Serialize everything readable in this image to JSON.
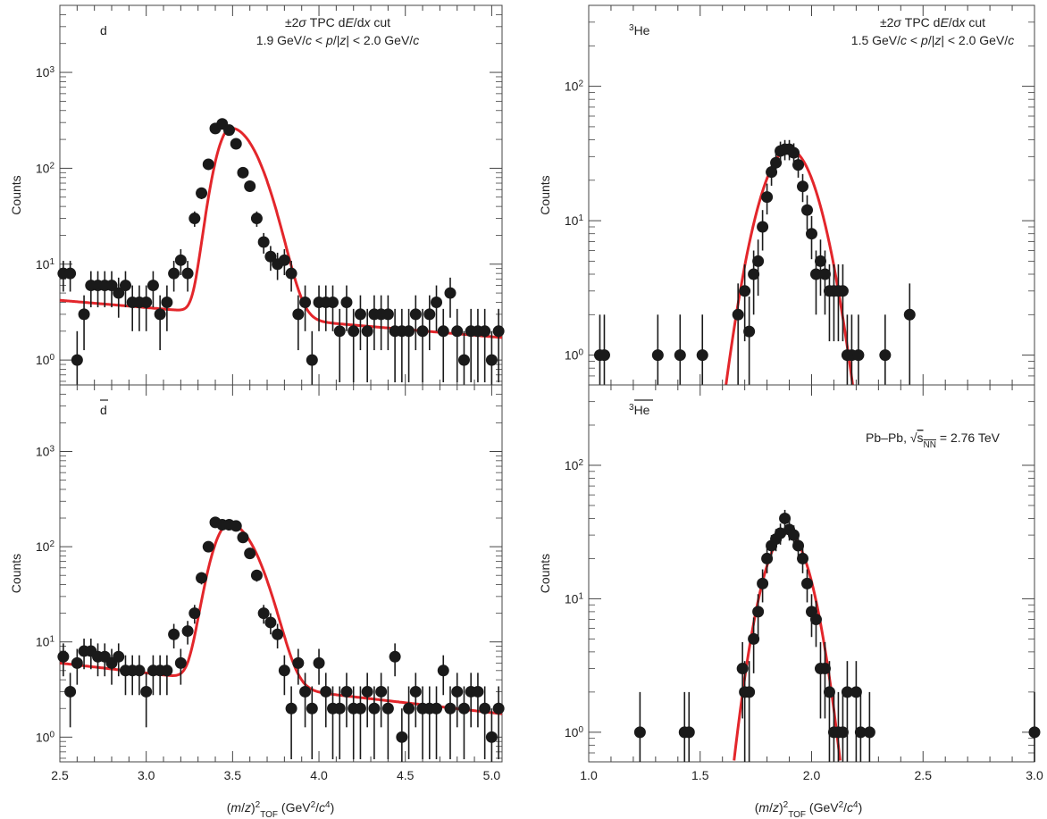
{
  "chart_data": [
    {
      "type": "scatter",
      "panel_label": "d",
      "annotation_lines": [
        "±2σ TPC dE/dx cut",
        "1.9 GeV/c < p/|z| < 2.0 GeV/c"
      ],
      "ylabel": "Counts",
      "y_scale": "log",
      "ylim": [
        0.55,
        5000
      ],
      "xlim": [
        2.5,
        5.06
      ],
      "xticks": [],
      "yticks": [
        {
          "v": 1,
          "label": "10⁰"
        },
        {
          "v": 10,
          "label": "10¹"
        },
        {
          "v": 100,
          "label": "10²"
        },
        {
          "v": 1000,
          "label": "10³"
        }
      ],
      "fit": {
        "type": "gauss+background",
        "amp": 260,
        "mu": 3.49,
        "sigma_left": 0.07,
        "sigma_right": 0.13,
        "bg_a": 4.2,
        "bg_slope": -0.35,
        "bg_x0": 2.5
      },
      "x": [
        2.52,
        2.56,
        2.6,
        2.64,
        2.68,
        2.72,
        2.76,
        2.8,
        2.84,
        2.88,
        2.92,
        2.96,
        3.0,
        3.04,
        3.08,
        3.12,
        3.16,
        3.2,
        3.24,
        3.28,
        3.32,
        3.36,
        3.4,
        3.44,
        3.48,
        3.52,
        3.56,
        3.6,
        3.64,
        3.68,
        3.72,
        3.76,
        3.8,
        3.84,
        3.88,
        3.92,
        3.96,
        4.0,
        4.04,
        4.08,
        4.12,
        4.16,
        4.2,
        4.24,
        4.28,
        4.32,
        4.36,
        4.4,
        4.44,
        4.48,
        4.52,
        4.56,
        4.6,
        4.64,
        4.68,
        4.72,
        4.76,
        4.8,
        4.84,
        4.88,
        4.92,
        4.96,
        5.0,
        5.04
      ],
      "y": [
        8,
        8,
        1,
        3,
        6,
        6,
        6,
        6,
        5,
        6,
        4,
        4,
        4,
        6,
        3,
        4,
        8,
        11,
        8,
        30,
        55,
        110,
        260,
        290,
        250,
        180,
        90,
        65,
        30,
        17,
        12,
        10,
        11,
        8,
        3,
        4,
        1,
        4,
        4,
        4,
        2,
        4,
        2,
        3,
        2,
        3,
        3,
        3,
        2,
        2,
        2,
        3,
        2,
        3,
        4,
        2,
        5,
        2,
        1,
        2,
        2,
        2,
        1,
        2
      ]
    },
    {
      "type": "scatter",
      "panel_label": "d̄",
      "ylabel": "Counts",
      "y_scale": "log",
      "ylim": [
        0.55,
        5000
      ],
      "xlim": [
        2.5,
        5.06
      ],
      "xticks": [
        {
          "v": 2.5,
          "label": "2.5"
        },
        {
          "v": 3.0,
          "label": "3.0"
        },
        {
          "v": 3.5,
          "label": "3.5"
        },
        {
          "v": 4.0,
          "label": "4.0"
        },
        {
          "v": 4.5,
          "label": "4.5"
        },
        {
          "v": 5.0,
          "label": "5.0"
        }
      ],
      "yticks": [
        {
          "v": 1,
          "label": "10⁰"
        },
        {
          "v": 10,
          "label": "10¹"
        },
        {
          "v": 100,
          "label": "10²"
        },
        {
          "v": 1000,
          "label": "10³"
        }
      ],
      "fit": {
        "type": "gauss+background",
        "amp": 170,
        "mu": 3.48,
        "sigma_left": 0.08,
        "sigma_right": 0.13,
        "bg_a": 6,
        "bg_slope": -0.48,
        "bg_x0": 2.5
      },
      "x": [
        2.52,
        2.56,
        2.6,
        2.64,
        2.68,
        2.72,
        2.76,
        2.8,
        2.84,
        2.88,
        2.92,
        2.96,
        3.0,
        3.04,
        3.08,
        3.12,
        3.16,
        3.2,
        3.24,
        3.28,
        3.32,
        3.36,
        3.4,
        3.44,
        3.48,
        3.52,
        3.56,
        3.6,
        3.64,
        3.68,
        3.72,
        3.76,
        3.8,
        3.84,
        3.88,
        3.92,
        3.96,
        4.0,
        4.04,
        4.08,
        4.12,
        4.16,
        4.2,
        4.24,
        4.28,
        4.32,
        4.36,
        4.4,
        4.44,
        4.48,
        4.52,
        4.56,
        4.6,
        4.64,
        4.68,
        4.72,
        4.76,
        4.8,
        4.84,
        4.88,
        4.92,
        4.96,
        5.0,
        5.04
      ],
      "y": [
        7,
        3,
        6,
        8,
        8,
        7,
        7,
        6,
        7,
        5,
        5,
        5,
        3,
        5,
        5,
        5,
        12,
        6,
        13,
        20,
        47,
        100,
        180,
        170,
        170,
        165,
        125,
        85,
        50,
        20,
        16,
        12,
        5,
        2,
        6,
        3,
        2,
        6,
        3,
        2,
        2,
        3,
        2,
        2,
        3,
        2,
        3,
        2,
        7,
        1,
        2,
        3,
        2,
        2,
        2,
        5,
        2,
        3,
        2,
        3,
        3,
        2,
        1,
        2
      ]
    },
    {
      "type": "scatter",
      "panel_label": "³He",
      "annotation_lines": [
        "±2σ TPC dE/dx cut",
        "1.5 GeV/c < p/|z| < 2.0 GeV/c"
      ],
      "ylabel": "Counts",
      "y_scale": "log",
      "ylim": [
        0.6,
        400
      ],
      "xlim": [
        1.0,
        3.0
      ],
      "xticks": [],
      "yticks": [
        {
          "v": 1,
          "label": "10⁰"
        },
        {
          "v": 10,
          "label": "10¹"
        },
        {
          "v": 100,
          "label": "10²"
        }
      ],
      "fit": {
        "type": "gauss",
        "amp": 34,
        "mu": 1.9,
        "sigma": 0.1
      },
      "x": [
        1.05,
        1.07,
        1.31,
        1.41,
        1.51,
        1.67,
        1.7,
        1.72,
        1.74,
        1.76,
        1.78,
        1.8,
        1.82,
        1.84,
        1.86,
        1.88,
        1.9,
        1.92,
        1.94,
        1.96,
        1.98,
        2.0,
        2.02,
        2.04,
        2.06,
        2.08,
        2.1,
        2.12,
        2.14,
        2.16,
        2.18,
        2.21,
        2.33,
        2.44
      ],
      "y": [
        1,
        1,
        1,
        1,
        1,
        2,
        3,
        1.5,
        4,
        5,
        9,
        15,
        23,
        27,
        33,
        34,
        34,
        32,
        26,
        18,
        12,
        8,
        4,
        5,
        4,
        3,
        3,
        3,
        3,
        1,
        1,
        1,
        1,
        2
      ]
    },
    {
      "type": "scatter",
      "panel_label": "³He̅",
      "annotation_lines": [
        "Pb–Pb, √sNN = 2.76 TeV"
      ],
      "ylabel": "Counts",
      "y_scale": "log",
      "ylim": [
        0.6,
        400
      ],
      "xlim": [
        1.0,
        3.0
      ],
      "xlabel": "(m/z)²TOF (GeV²/c⁴)",
      "xticks": [
        {
          "v": 1.0,
          "label": "1.0"
        },
        {
          "v": 1.5,
          "label": "1.5"
        },
        {
          "v": 2.0,
          "label": "2.0"
        },
        {
          "v": 2.5,
          "label": "2.5"
        },
        {
          "v": 3.0,
          "label": "3.0"
        }
      ],
      "yticks": [
        {
          "v": 1,
          "label": "10⁰"
        },
        {
          "v": 10,
          "label": "10¹"
        },
        {
          "v": 100,
          "label": "10²"
        }
      ],
      "fit": {
        "type": "gauss",
        "amp": 31,
        "mu": 1.89,
        "sigma": 0.085
      },
      "x": [
        1.23,
        1.43,
        1.45,
        1.69,
        1.7,
        1.72,
        1.74,
        1.76,
        1.78,
        1.8,
        1.82,
        1.84,
        1.86,
        1.88,
        1.9,
        1.92,
        1.94,
        1.96,
        1.98,
        2.0,
        2.02,
        2.04,
        2.06,
        2.08,
        2.1,
        2.12,
        2.14,
        2.16,
        2.2,
        2.22,
        2.26,
        3.0
      ],
      "y": [
        1,
        1,
        1,
        3,
        2,
        2,
        5,
        8,
        13,
        20,
        25,
        28,
        31,
        40,
        33,
        30,
        25,
        20,
        13,
        8,
        7,
        3,
        3,
        2,
        1,
        1,
        1,
        2,
        2,
        1,
        1,
        1
      ]
    }
  ],
  "axis_label_left": "(m/z)²TOF (GeV²/c⁴)",
  "axis_label_right": "(m/z)²TOF (GeV²/c⁴)"
}
